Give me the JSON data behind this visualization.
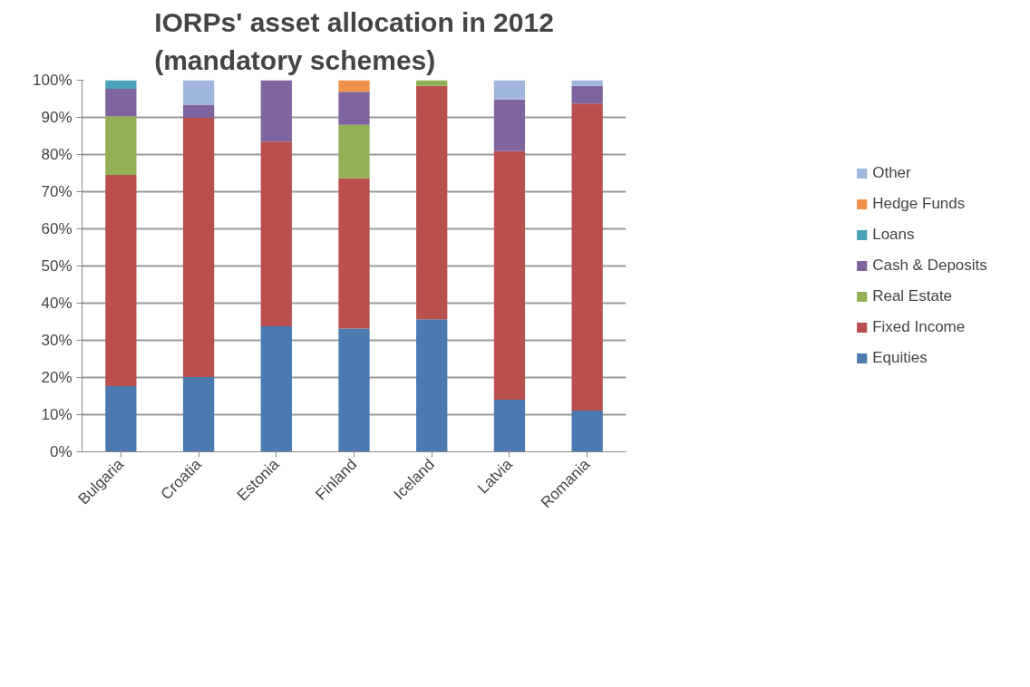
{
  "chart_data": {
    "type": "bar",
    "stacked": true,
    "title": "IORPs' asset allocation in 2012 (mandatory schemes)",
    "categories": [
      "Bulgaria",
      "Croatia",
      "Estonia",
      "Finland",
      "Iceland",
      "Latvia",
      "Romania"
    ],
    "series": [
      {
        "name": "Equities",
        "color": "#4a7ab0",
        "values": [
          17.7,
          20.1,
          33.8,
          33.2,
          35.7,
          14.0,
          11.1
        ]
      },
      {
        "name": "Fixed Income",
        "color": "#b9504d",
        "values": [
          56.8,
          69.8,
          49.7,
          40.4,
          62.8,
          66.9,
          82.6
        ]
      },
      {
        "name": "Real Estate",
        "color": "#94b054",
        "values": [
          15.8,
          null,
          null,
          14.4,
          1.5,
          null,
          null
        ]
      },
      {
        "name": "Cash & Deposits",
        "color": "#7f649f",
        "values": [
          7.4,
          3.5,
          16.5,
          8.9,
          null,
          13.9,
          4.8
        ]
      },
      {
        "name": "Loans",
        "color": "#4aa3b8",
        "values": [
          2.3,
          null,
          null,
          null,
          null,
          null,
          null
        ]
      },
      {
        "name": "Hedge Funds",
        "color": "#f0914a",
        "values": [
          null,
          null,
          null,
          3.1,
          null,
          null,
          null
        ]
      },
      {
        "name": "Other",
        "color": "#a2b7dd",
        "values": [
          null,
          6.6,
          null,
          null,
          null,
          5.2,
          1.5
        ]
      }
    ],
    "ylim": [
      0,
      100
    ],
    "yticks": [
      {
        "value": 0,
        "label": "0%"
      },
      {
        "value": 10,
        "label": "10%"
      },
      {
        "value": 20,
        "label": "20%"
      },
      {
        "value": 30,
        "label": "30%"
      },
      {
        "value": 40,
        "label": "40%"
      },
      {
        "value": 50,
        "label": "50%"
      },
      {
        "value": 60,
        "label": "60%"
      },
      {
        "value": 70,
        "label": "70%"
      },
      {
        "value": 80,
        "label": "80%"
      },
      {
        "value": 90,
        "label": "90%"
      },
      {
        "value": 100,
        "label": "100%"
      }
    ],
    "grid": "y",
    "legend": "right"
  }
}
